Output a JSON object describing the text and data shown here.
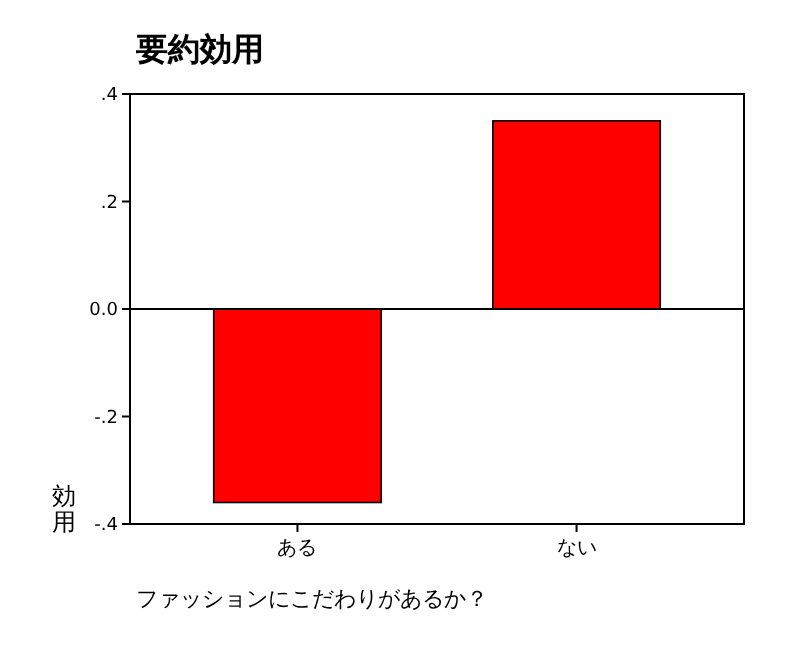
{
  "chart_data": {
    "type": "bar",
    "title": "要約効用",
    "xlabel": "ファッションにこだわりがあるか？",
    "ylabel": "効用",
    "categories": [
      "ある",
      "ない"
    ],
    "values": [
      -0.36,
      0.35
    ],
    "color": "#ff0000",
    "ylim": [
      -0.4,
      0.4
    ],
    "yticks": [
      {
        "value": 0.4,
        "label": ".4"
      },
      {
        "value": 0.2,
        "label": ".2"
      },
      {
        "value": 0,
        "label": "0.0"
      },
      {
        "value": -0.2,
        "label": "-.2"
      },
      {
        "value": -0.4,
        "label": "-.4"
      }
    ],
    "ref_lines": [
      {
        "axis": "y",
        "value": 0,
        "color": "#000000"
      }
    ],
    "grid": false
  }
}
